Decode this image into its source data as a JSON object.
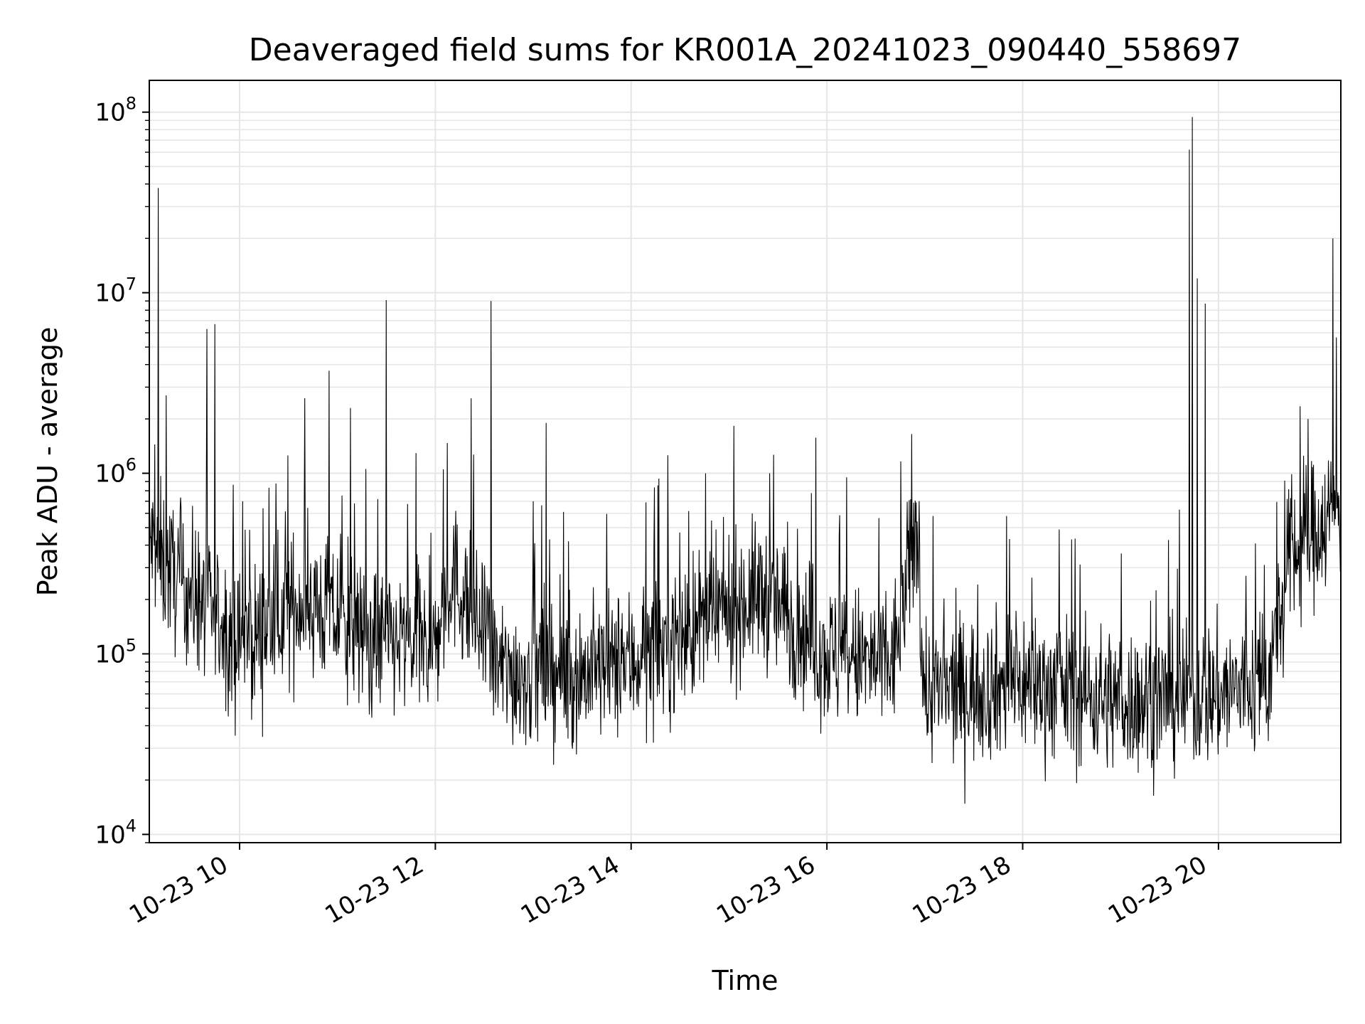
{
  "chart_data": {
    "type": "line",
    "title": "Deaveraged field sums for KR001A_20241023_090440_558697",
    "xlabel": "Time",
    "ylabel": "Peak ADU - average",
    "yscale": "log",
    "ylim": [
      9000,
      150000000
    ],
    "xlim": [
      "2024-10-23T09:04:40",
      "2024-10-23T21:15:00"
    ],
    "grid": true,
    "line_color": "#000000",
    "x_ticks": [
      {
        "label": "10-23 10",
        "value": "2024-10-23T10:00"
      },
      {
        "label": "10-23 12",
        "value": "2024-10-23T12:00"
      },
      {
        "label": "10-23 14",
        "value": "2024-10-23T14:00"
      },
      {
        "label": "10-23 16",
        "value": "2024-10-23T16:00"
      },
      {
        "label": "10-23 18",
        "value": "2024-10-23T18:00"
      },
      {
        "label": "10-23 20",
        "value": "2024-10-23T20:00"
      }
    ],
    "y_ticks": [
      {
        "mantissa": "10",
        "exponent": "4",
        "value": 10000
      },
      {
        "mantissa": "10",
        "exponent": "5",
        "value": 100000
      },
      {
        "mantissa": "10",
        "exponent": "6",
        "value": 1000000
      },
      {
        "mantissa": "10",
        "exponent": "7",
        "value": 10000000
      },
      {
        "mantissa": "10",
        "exponent": "8",
        "value": 100000000
      }
    ],
    "series": [
      {
        "values_note": "approximate baseline level, read off the log axis",
        "baseline": [
          {
            "x": "2024-10-23T09:05",
            "y": 420000
          },
          {
            "x": "2024-10-23T09:15",
            "y": 300000
          },
          {
            "x": "2024-10-23T09:40",
            "y": 180000
          },
          {
            "x": "2024-10-23T10:00",
            "y": 110000
          },
          {
            "x": "2024-10-23T10:40",
            "y": 200000
          },
          {
            "x": "2024-10-23T11:20",
            "y": 120000
          },
          {
            "x": "2024-10-23T12:00",
            "y": 110000
          },
          {
            "x": "2024-10-23T12:10",
            "y": 280000
          },
          {
            "x": "2024-10-23T12:40",
            "y": 80000
          },
          {
            "x": "2024-10-23T13:20",
            "y": 75000
          },
          {
            "x": "2024-10-23T14:00",
            "y": 90000
          },
          {
            "x": "2024-10-23T14:40",
            "y": 140000
          },
          {
            "x": "2024-10-23T15:20",
            "y": 220000
          },
          {
            "x": "2024-10-23T16:00",
            "y": 100000
          },
          {
            "x": "2024-10-23T16:40",
            "y": 85000
          },
          {
            "x": "2024-10-23T16:55",
            "y": 500000
          },
          {
            "x": "2024-10-23T17:00",
            "y": 60000
          },
          {
            "x": "2024-10-23T18:00",
            "y": 70000
          },
          {
            "x": "2024-10-23T19:00",
            "y": 55000
          },
          {
            "x": "2024-10-23T20:00",
            "y": 60000
          },
          {
            "x": "2024-10-23T20:30",
            "y": 70000
          },
          {
            "x": "2024-10-23T20:45",
            "y": 350000
          },
          {
            "x": "2024-10-23T21:15",
            "y": 700000
          }
        ],
        "spikes": [
          {
            "x": "2024-10-23T09:10",
            "y": 38000000
          },
          {
            "x": "2024-10-23T09:15",
            "y": 2700000
          },
          {
            "x": "2024-10-23T09:40",
            "y": 6300000
          },
          {
            "x": "2024-10-23T09:45",
            "y": 6700000
          },
          {
            "x": "2024-10-23T10:02",
            "y": 700000
          },
          {
            "x": "2024-10-23T10:55",
            "y": 3700000
          },
          {
            "x": "2024-10-23T11:08",
            "y": 2300000
          },
          {
            "x": "2024-10-23T11:30",
            "y": 9100000
          },
          {
            "x": "2024-10-23T12:22",
            "y": 2600000
          },
          {
            "x": "2024-10-23T12:34",
            "y": 9000000
          },
          {
            "x": "2024-10-23T13:00",
            "y": 700000
          },
          {
            "x": "2024-10-23T13:08",
            "y": 1900000
          },
          {
            "x": "2024-10-23T15:25",
            "y": 1000000
          },
          {
            "x": "2024-10-23T16:12",
            "y": 950000
          },
          {
            "x": "2024-10-23T16:52",
            "y": 1650000
          },
          {
            "x": "2024-10-23T17:05",
            "y": 580000
          },
          {
            "x": "2024-10-23T17:50",
            "y": 580000
          },
          {
            "x": "2024-10-23T18:30",
            "y": 430000
          },
          {
            "x": "2024-10-23T19:42",
            "y": 62000000
          },
          {
            "x": "2024-10-23T19:44",
            "y": 94000000
          },
          {
            "x": "2024-10-23T19:47",
            "y": 12000000
          },
          {
            "x": "2024-10-23T19:52",
            "y": 8700000
          },
          {
            "x": "2024-10-23T20:55",
            "y": 2000000
          },
          {
            "x": "2024-10-23T21:10",
            "y": 20000000
          }
        ]
      }
    ]
  }
}
